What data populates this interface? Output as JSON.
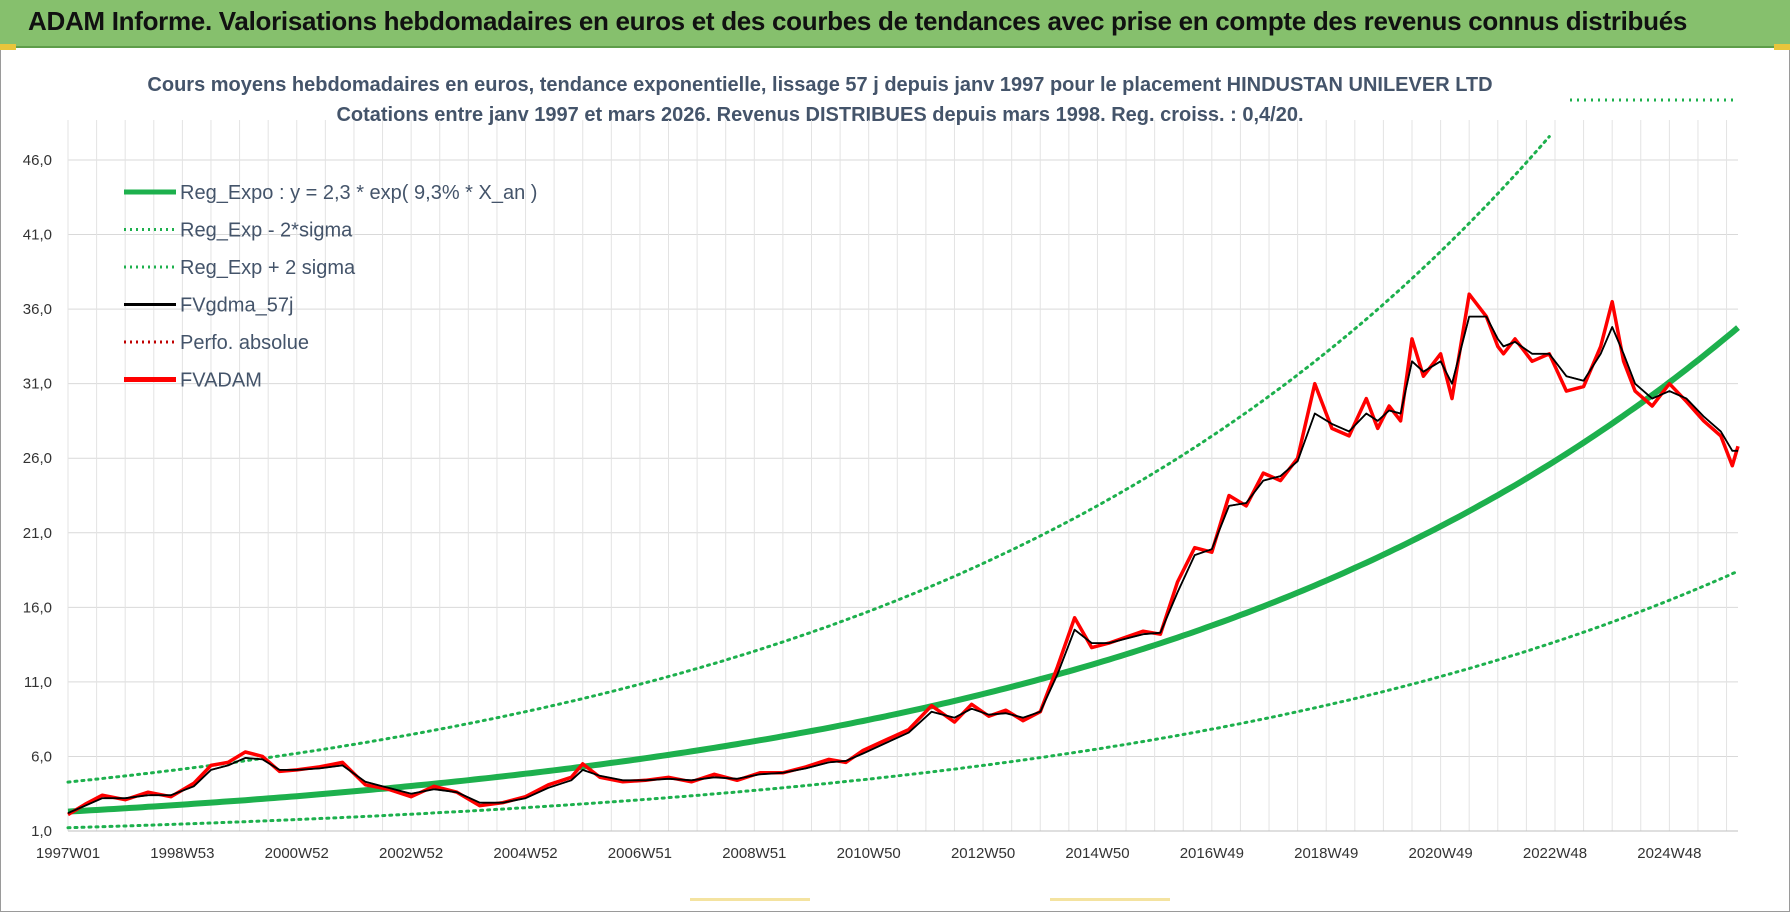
{
  "banner": {
    "title": "ADAM Informe. Valorisations hebdomadaires en euros et des courbes de tendances avec prise en compte des revenus connus distribués"
  },
  "colors": {
    "banner_bg": "#86c06d",
    "trend": "#1db04d",
    "smooth": "#000000",
    "fvadam": "#ff0000",
    "perfo": "#c00000",
    "title_text": "#44546a"
  },
  "chart_data": {
    "type": "line",
    "title": "Cours moyens hebdomadaires en euros, tendance exponentielle, lissage 57 j depuis janv 1997 pour le placement HINDUSTAN UNILEVER LTD",
    "subtitle": "Cotations entre janv 1997 et mars 2026. Revenus DISTRIBUES depuis mars 1998. Reg. croiss. : 0,4/20.",
    "xlabel": "",
    "ylabel": "",
    "x_ticks": [
      "1997W01",
      "1998W53",
      "2000W52",
      "2002W52",
      "2004W52",
      "2006W51",
      "2008W51",
      "2010W50",
      "2012W50",
      "2014W50",
      "2016W49",
      "2018W49",
      "2020W49",
      "2022W48",
      "2024W48"
    ],
    "x_tick_years": [
      1997.0,
      1999.0,
      2001.0,
      2003.0,
      2005.0,
      2007.0,
      2009.0,
      2011.0,
      2013.0,
      2015.0,
      2017.0,
      2019.0,
      2021.0,
      2023.0,
      2025.0
    ],
    "x_range": [
      1997.0,
      2026.2
    ],
    "y_ticks": [
      "1,0",
      "6,0",
      "11,0",
      "16,0",
      "21,0",
      "26,0",
      "31,0",
      "36,0",
      "41,0",
      "46,0"
    ],
    "ylim": [
      1,
      46
    ],
    "grid": true,
    "legend_position": "top-left",
    "legend": [
      {
        "label": "Reg_Expo : y = 2,3 * exp( 9,3% *  X_an )",
        "color": "#1db04d",
        "style": "solid-thick"
      },
      {
        "label": "Reg_Exp - 2*sigma",
        "color": "#1db04d",
        "style": "dotted"
      },
      {
        "label": "Reg_Exp + 2 sigma",
        "color": "#1db04d",
        "style": "dotted"
      },
      {
        "label": "FVgdma_57j",
        "color": "#000000",
        "style": "solid"
      },
      {
        "label": "Perfo. absolue",
        "color": "#c00000",
        "style": "dotted"
      },
      {
        "label": "FVADAM",
        "color": "#ff0000",
        "style": "solid-thick"
      }
    ],
    "trend": {
      "a": 2.3,
      "b": 0.093,
      "lower_factor": 0.53,
      "upper_factor": 1.86
    },
    "series": [
      {
        "name": "FVADAM",
        "x": [
          1997.0,
          1997.3,
          1997.6,
          1998.0,
          1998.4,
          1998.8,
          1999.2,
          1999.5,
          1999.8,
          2000.1,
          2000.4,
          2000.7,
          2001.0,
          2001.4,
          2001.8,
          2002.2,
          2002.6,
          2003.0,
          2003.4,
          2003.8,
          2004.2,
          2004.6,
          2005.0,
          2005.4,
          2005.8,
          2006.0,
          2006.3,
          2006.7,
          2007.1,
          2007.5,
          2007.9,
          2008.3,
          2008.7,
          2009.1,
          2009.5,
          2009.9,
          2010.3,
          2010.6,
          2010.9,
          2011.3,
          2011.7,
          2012.1,
          2012.5,
          2012.8,
          2013.1,
          2013.4,
          2013.7,
          2014.0,
          2014.3,
          2014.6,
          2014.9,
          2015.2,
          2015.5,
          2015.8,
          2016.1,
          2016.4,
          2016.7,
          2017.0,
          2017.3,
          2017.6,
          2017.9,
          2018.2,
          2018.5,
          2018.8,
          2019.1,
          2019.4,
          2019.7,
          2019.9,
          2020.1,
          2020.3,
          2020.5,
          2020.7,
          2021.0,
          2021.2,
          2021.5,
          2021.8,
          2022.0,
          2022.1,
          2022.3,
          2022.6,
          2022.9,
          2023.2,
          2023.5,
          2023.8,
          2024.0,
          2024.2,
          2024.4,
          2024.7,
          2025.0,
          2025.3,
          2025.6,
          2025.9,
          2026.1,
          2026.2
        ],
        "values": [
          2.1,
          2.8,
          3.4,
          3.1,
          3.6,
          3.3,
          4.2,
          5.4,
          5.6,
          6.3,
          6.0,
          5.0,
          5.1,
          5.3,
          5.6,
          4.1,
          3.8,
          3.3,
          4.0,
          3.6,
          2.7,
          2.9,
          3.3,
          4.1,
          4.6,
          5.5,
          4.6,
          4.3,
          4.4,
          4.6,
          4.3,
          4.8,
          4.4,
          4.9,
          4.9,
          5.3,
          5.8,
          5.6,
          6.4,
          7.1,
          7.8,
          9.4,
          8.3,
          9.5,
          8.7,
          9.1,
          8.4,
          9.0,
          12.0,
          15.3,
          13.3,
          13.6,
          14.0,
          14.4,
          14.2,
          17.7,
          20.0,
          19.7,
          23.5,
          22.8,
          25.0,
          24.5,
          26.0,
          31.0,
          28.0,
          27.5,
          30.0,
          28.0,
          29.5,
          28.5,
          34.0,
          31.5,
          33.0,
          30.0,
          37.0,
          35.5,
          33.5,
          33.0,
          34.0,
          32.5,
          33.0,
          30.5,
          30.8,
          33.5,
          36.5,
          32.5,
          30.5,
          29.5,
          31.0,
          29.8,
          28.5,
          27.5,
          25.5,
          26.8
        ]
      },
      {
        "name": "FVgdma_57j",
        "x": [
          1997.0,
          1997.3,
          1997.6,
          1998.0,
          1998.4,
          1998.8,
          1999.2,
          1999.5,
          1999.8,
          2000.1,
          2000.4,
          2000.7,
          2001.0,
          2001.4,
          2001.8,
          2002.2,
          2002.6,
          2003.0,
          2003.4,
          2003.8,
          2004.2,
          2004.6,
          2005.0,
          2005.4,
          2005.8,
          2006.0,
          2006.3,
          2006.7,
          2007.1,
          2007.5,
          2007.9,
          2008.3,
          2008.7,
          2009.1,
          2009.5,
          2009.9,
          2010.3,
          2010.6,
          2010.9,
          2011.3,
          2011.7,
          2012.1,
          2012.5,
          2012.8,
          2013.1,
          2013.4,
          2013.7,
          2014.0,
          2014.3,
          2014.6,
          2014.9,
          2015.2,
          2015.5,
          2015.8,
          2016.1,
          2016.4,
          2016.7,
          2017.0,
          2017.3,
          2017.6,
          2017.9,
          2018.2,
          2018.5,
          2018.8,
          2019.1,
          2019.4,
          2019.7,
          2019.9,
          2020.1,
          2020.3,
          2020.5,
          2020.7,
          2021.0,
          2021.2,
          2021.5,
          2021.8,
          2022.0,
          2022.1,
          2022.3,
          2022.6,
          2022.9,
          2023.2,
          2023.5,
          2023.8,
          2024.0,
          2024.2,
          2024.4,
          2024.7,
          2025.0,
          2025.3,
          2025.6,
          2025.9,
          2026.1,
          2026.2
        ],
        "values": [
          2.2,
          2.7,
          3.2,
          3.2,
          3.4,
          3.4,
          4.0,
          5.1,
          5.4,
          5.9,
          5.8,
          5.1,
          5.1,
          5.2,
          5.4,
          4.3,
          3.9,
          3.5,
          3.8,
          3.6,
          2.9,
          2.9,
          3.2,
          3.9,
          4.4,
          5.1,
          4.7,
          4.4,
          4.4,
          4.5,
          4.4,
          4.6,
          4.5,
          4.8,
          4.9,
          5.2,
          5.6,
          5.7,
          6.2,
          6.9,
          7.6,
          9.0,
          8.6,
          9.2,
          8.8,
          8.9,
          8.6,
          9.0,
          11.5,
          14.5,
          13.6,
          13.6,
          13.9,
          14.2,
          14.3,
          17.0,
          19.5,
          19.9,
          22.8,
          23.0,
          24.5,
          24.8,
          25.8,
          29.0,
          28.3,
          27.8,
          29.0,
          28.5,
          29.2,
          29.0,
          32.5,
          31.8,
          32.5,
          31.0,
          35.5,
          35.5,
          34.0,
          33.5,
          33.8,
          33.0,
          33.0,
          31.5,
          31.2,
          33.0,
          34.8,
          33.0,
          31.0,
          30.0,
          30.5,
          30.0,
          28.8,
          27.8,
          26.5,
          26.5
        ]
      }
    ]
  }
}
